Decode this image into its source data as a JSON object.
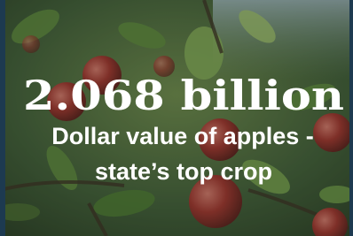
{
  "headline": "2.068 billion",
  "caption": {
    "lines": [
      "Dollar value of apples -",
      "state’s top crop"
    ]
  }
}
